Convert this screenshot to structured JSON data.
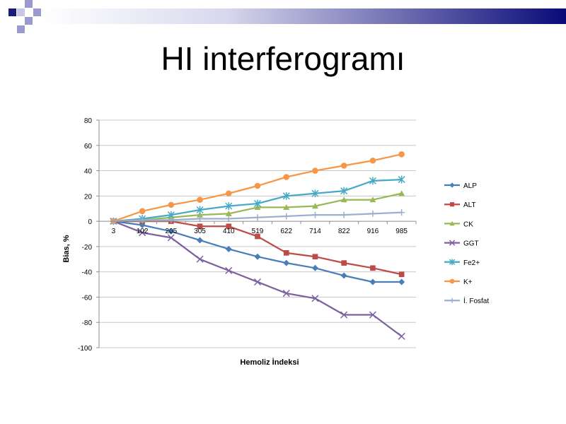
{
  "slide": {
    "title": "HI interferogramı"
  },
  "colors": {
    "banner_dark": "#0a0a78",
    "banner_light": "#ffffff",
    "square_dark": "#1a1a80",
    "square_light": "#9a9ad0"
  },
  "chart_data": {
    "type": "line",
    "title": "",
    "xlabel": "Hemoliz İndeksi",
    "ylabel": "Bias, %",
    "categories": [
      "3",
      "102",
      "205",
      "305",
      "410",
      "519",
      "622",
      "714",
      "822",
      "916",
      "985"
    ],
    "ylim": [
      -100,
      80
    ],
    "yticks": [
      80,
      60,
      40,
      20,
      0,
      -20,
      -40,
      -60,
      -80,
      -100
    ],
    "grid": true,
    "legend_position": "right",
    "series": [
      {
        "name": "ALP",
        "color": "#4a7ebb",
        "marker": "diamond",
        "values": [
          0,
          -3,
          -8,
          -15,
          -22,
          -28,
          -33,
          -37,
          -43,
          -48,
          -48
        ]
      },
      {
        "name": "ALT",
        "color": "#be4b48",
        "marker": "square",
        "values": [
          0,
          0,
          0,
          -4,
          -4,
          -12,
          -25,
          -28,
          -33,
          -37,
          -42
        ]
      },
      {
        "name": "CK",
        "color": "#98b954",
        "marker": "triangle",
        "values": [
          0,
          1,
          3,
          5,
          6,
          11,
          11,
          12,
          17,
          17,
          22
        ]
      },
      {
        "name": "GGT",
        "color": "#7d60a0",
        "marker": "x",
        "values": [
          0,
          -9,
          -13,
          -30,
          -39,
          -48,
          -57,
          -61,
          -74,
          -74,
          -91
        ]
      },
      {
        "name": "Fe2+",
        "color": "#46aac5",
        "marker": "star",
        "values": [
          0,
          2,
          5,
          9,
          12,
          14,
          20,
          22,
          24,
          32,
          33
        ]
      },
      {
        "name": "K+",
        "color": "#f79646",
        "marker": "circle",
        "values": [
          0,
          8,
          13,
          17,
          22,
          28,
          35,
          40,
          44,
          48,
          53
        ]
      },
      {
        "name": "İ. Fosfat",
        "color": "#9cafd0",
        "marker": "plus",
        "values": [
          0,
          1,
          1,
          2,
          2,
          3,
          4,
          5,
          5,
          6,
          7
        ]
      }
    ]
  }
}
